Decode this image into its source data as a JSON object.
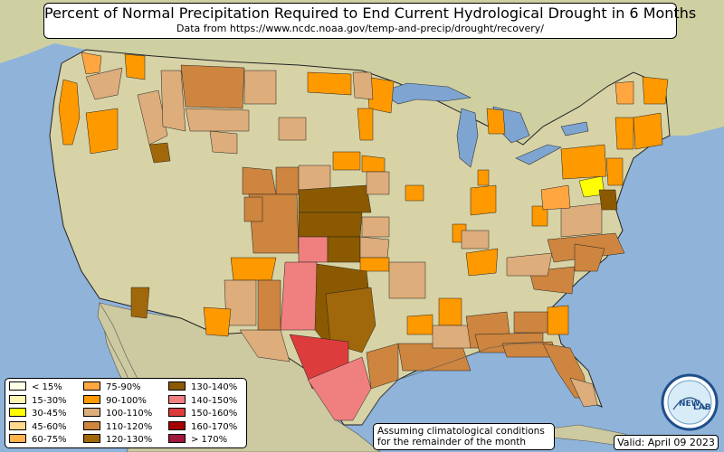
{
  "header": {
    "title": "Percent of Normal Precipitation Required to End Current Hydrological Drought in 6 Months",
    "subtitle": "Data from https://www.ncdc.noaa.gov/temp-and-precip/drought/recovery/"
  },
  "legend": {
    "items": [
      {
        "label": "< 15%",
        "color": "#ffffe6"
      },
      {
        "label": "15-30%",
        "color": "#fff5b3"
      },
      {
        "label": "30-45%",
        "color": "#ffff00"
      },
      {
        "label": "45-60%",
        "color": "#ffd98c"
      },
      {
        "label": "60-75%",
        "color": "#ffb24d"
      },
      {
        "label": "75-90%",
        "color": "#ffa640"
      },
      {
        "label": "90-100%",
        "color": "#ff9900"
      },
      {
        "label": "100-110%",
        "color": "#ddad7b"
      },
      {
        "label": "110-120%",
        "color": "#cd853f"
      },
      {
        "label": "120-130%",
        "color": "#a0680a"
      },
      {
        "label": "130-140%",
        "color": "#8b5a00"
      },
      {
        "label": "140-150%",
        "color": "#f08080"
      },
      {
        "label": "150-160%",
        "color": "#dd3c3c"
      },
      {
        "label": "160-170%",
        "color": "#a50000"
      },
      {
        "label": "> 170%",
        "color": "#a0183c"
      }
    ]
  },
  "note": {
    "line1": "Assuming climatological conditions",
    "line2": "for the remainder of the month"
  },
  "valid_label": "Valid: April 09 2023",
  "logo": {
    "text_left": "NEW",
    "text_right": "LAB"
  },
  "colors": {
    "ocean": "#8fb3d9",
    "land": "#d8d3a6",
    "great_lakes": "#7ea4d2"
  }
}
